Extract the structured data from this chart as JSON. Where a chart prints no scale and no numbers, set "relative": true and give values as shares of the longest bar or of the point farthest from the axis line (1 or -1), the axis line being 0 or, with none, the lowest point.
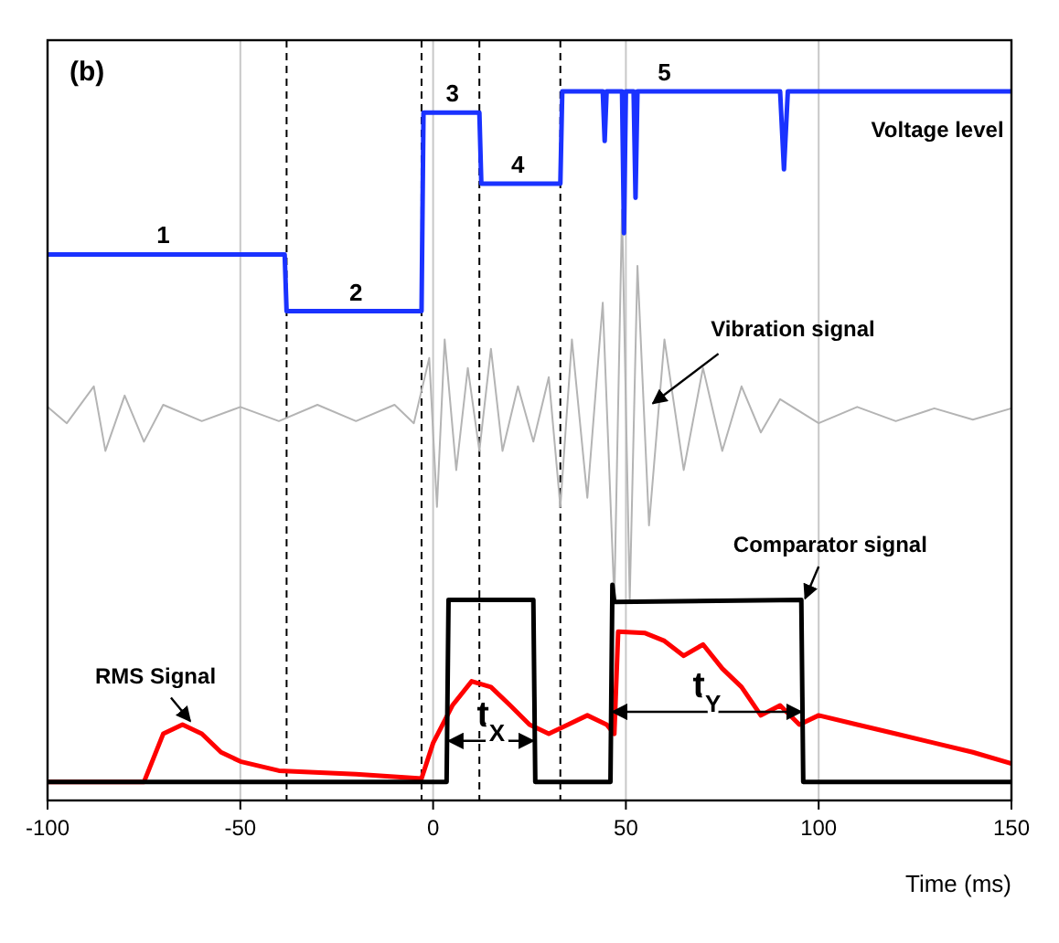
{
  "chart_data": {
    "type": "line",
    "title": "(b)",
    "xlabel": "Time (ms)",
    "relative": true,
    "legend": false,
    "marker": "none",
    "grid": "x",
    "xlim": [
      -100,
      150
    ],
    "xticks": [
      -100,
      -50,
      0,
      50,
      100,
      150
    ],
    "tick_labels": "x",
    "series": [
      {
        "name": "Vibration signal",
        "color": "#b4b4b4",
        "x": [
          -100,
          -95,
          -88,
          -85,
          -80,
          -75,
          -70,
          -60,
          -50,
          -40,
          -30,
          -20,
          -10,
          -5,
          -1,
          1,
          3,
          6,
          9,
          12,
          15,
          18,
          22,
          26,
          30,
          33,
          36,
          40,
          44,
          47,
          49,
          51,
          53,
          56,
          60,
          65,
          70,
          75,
          80,
          85,
          90,
          100,
          110,
          120,
          130,
          140,
          150
        ],
        "values": [
          0.555,
          0.532,
          0.584,
          0.493,
          0.571,
          0.506,
          0.558,
          0.535,
          0.555,
          0.535,
          0.558,
          0.535,
          0.558,
          0.532,
          0.624,
          0.414,
          0.65,
          0.466,
          0.61,
          0.493,
          0.637,
          0.493,
          0.584,
          0.506,
          0.597,
          0.414,
          0.65,
          0.427,
          0.702,
          0.283,
          0.833,
          0.283,
          0.754,
          0.388,
          0.65,
          0.466,
          0.61,
          0.493,
          0.584,
          0.519,
          0.566,
          0.532,
          0.555,
          0.535,
          0.553,
          0.537,
          0.553
        ]
      },
      {
        "name": "Voltage level",
        "color": "#1a32ff",
        "x": [
          -100,
          -38.5,
          -38,
          -3,
          -2.5,
          12,
          12.5,
          33,
          33.5,
          44,
          44.5,
          45,
          49,
          49.5,
          50,
          52,
          52.5,
          53,
          90,
          91,
          92,
          150
        ],
        "values": [
          0.77,
          0.77,
          0.69,
          0.69,
          0.97,
          0.97,
          0.87,
          0.87,
          1,
          1,
          0.93,
          1,
          1,
          0.8,
          1,
          1,
          0.85,
          1,
          1,
          0.89,
          1,
          1
        ]
      },
      {
        "name": "RMS Signal",
        "color": "#ff0000",
        "x": [
          -100,
          -75,
          -70,
          -65,
          -60,
          -55,
          -50,
          -40,
          -20,
          -3,
          0,
          5,
          10,
          15,
          20,
          25,
          30,
          35,
          40,
          45,
          47,
          48,
          55,
          60,
          65,
          70,
          75,
          80,
          85,
          90,
          95,
          100,
          110,
          120,
          130,
          140,
          150
        ],
        "values": [
          0.026,
          0.026,
          0.094,
          0.107,
          0.094,
          0.068,
          0.055,
          0.042,
          0.037,
          0.031,
          0.081,
          0.134,
          0.168,
          0.16,
          0.134,
          0.107,
          0.094,
          0.107,
          0.12,
          0.107,
          0.094,
          0.238,
          0.236,
          0.225,
          0.204,
          0.22,
          0.186,
          0.16,
          0.12,
          0.134,
          0.107,
          0.12,
          0.107,
          0.094,
          0.081,
          0.068,
          0.052
        ]
      },
      {
        "name": "Comparator signal",
        "color": "#000000",
        "x": [
          -100,
          3.5,
          4,
          26,
          26.5,
          46,
          46.5,
          47,
          95.5,
          96,
          150
        ],
        "values": [
          0.026,
          0.026,
          0.283,
          0.283,
          0.026,
          0.026,
          0.304,
          0.28,
          0.283,
          0.026,
          0.026
        ]
      }
    ],
    "ref_lines": [
      {
        "axis": "x",
        "value": -38,
        "color": "#000000",
        "line_style": "dashed"
      },
      {
        "axis": "x",
        "value": -3,
        "color": "#000000",
        "line_style": "dashed"
      },
      {
        "axis": "x",
        "value": 12,
        "color": "#000000",
        "line_style": "dashed"
      },
      {
        "axis": "x",
        "value": 33,
        "color": "#000000",
        "line_style": "dashed"
      }
    ],
    "annotations": [
      {
        "text": "1",
        "x": -70,
        "y": 0.77
      },
      {
        "text": "2",
        "x": -20,
        "y": 0.69
      },
      {
        "text": "3",
        "x": 5,
        "y": 0.97
      },
      {
        "text": "4",
        "x": 22,
        "y": 0.87
      },
      {
        "text": "5",
        "x": 60,
        "y": 1
      },
      "t$_{X}$",
      "t$_{Y}$"
    ]
  }
}
